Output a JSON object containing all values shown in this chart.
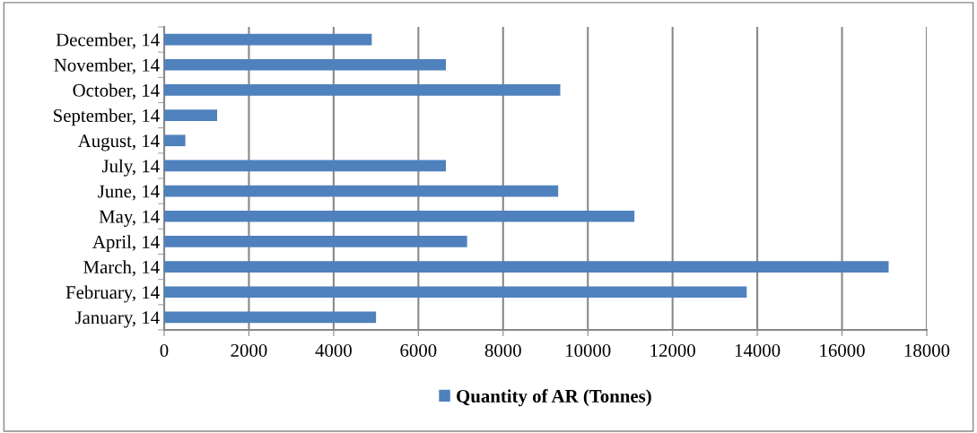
{
  "chart_data": {
    "type": "bar",
    "orientation": "horizontal",
    "categories": [
      "December, 14",
      "November, 14",
      "October, 14",
      "September, 14",
      "August, 14",
      "July, 14",
      "June, 14",
      "May, 14",
      "April, 14",
      "March, 14",
      "February, 14",
      "January, 14"
    ],
    "series": [
      {
        "name": "Quantity of AR (Tonnes)",
        "color": "#4f81bd",
        "values": [
          4900,
          6650,
          9350,
          1250,
          500,
          6650,
          9300,
          11100,
          7150,
          17100,
          13750,
          5000
        ]
      }
    ],
    "xlim": [
      0,
      18000
    ],
    "xticks": [
      0,
      2000,
      4000,
      6000,
      8000,
      10000,
      12000,
      14000,
      16000,
      18000
    ],
    "grid": "x",
    "legend": "bottom"
  }
}
